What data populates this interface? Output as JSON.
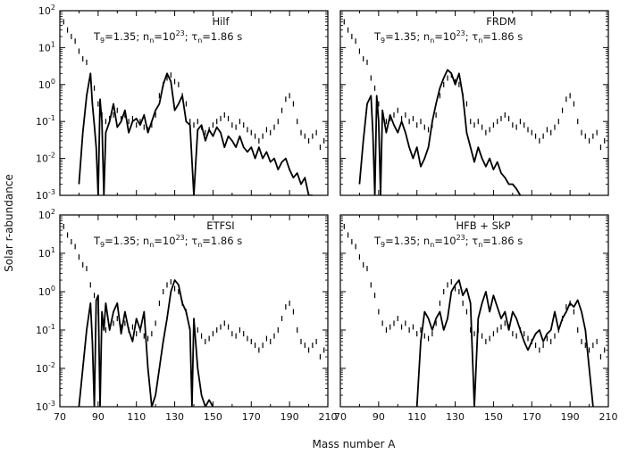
{
  "figure": {
    "ylabel": "Solar r-abundance",
    "xlabel": "Mass number A",
    "colors": {
      "model_line": "#000000",
      "solar_bars": "#000000",
      "frame": "#000000",
      "background": "#ffffff"
    }
  },
  "chart_data": [
    {
      "type": "line",
      "panel": "top-left",
      "label": "Hilf",
      "conditions": {
        "T": "T",
        "T_sub": "9",
        "T_val": "=1.35;",
        "n": "n",
        "n_sub": "n",
        "n_val": "=10",
        "n_exp": "23",
        "n_end": ";",
        "tau": "τ",
        "tau_sub": "n",
        "tau_val": "=1.86  s"
      },
      "xlim": [
        70,
        210
      ],
      "ylim_log10": [
        -3,
        2
      ],
      "yscale": "log",
      "xticks": [
        "70",
        "90",
        "110",
        "130",
        "150",
        "170",
        "190",
        "210"
      ],
      "yticks": [
        "10-3",
        "10-2",
        "10-1",
        "100",
        "101",
        "102"
      ],
      "series": [
        {
          "style": "thick-line",
          "x": [
            80,
            82,
            84,
            86,
            87,
            88,
            89,
            90,
            91,
            92,
            93,
            94,
            96,
            98,
            100,
            102,
            104,
            106,
            108,
            110,
            112,
            114,
            116,
            118,
            120,
            122,
            124,
            126,
            128,
            130,
            132,
            134,
            136,
            138,
            140,
            142,
            144,
            146,
            148,
            150,
            152,
            154,
            156,
            158,
            160,
            162,
            164,
            166,
            168,
            170,
            172,
            174,
            176,
            178,
            180,
            182,
            184,
            186,
            188,
            190,
            192,
            194,
            196,
            198,
            200,
            202
          ],
          "y": [
            0.002,
            0.05,
            0.5,
            2.0,
            0.3,
            0.08,
            0.02,
            0.0005,
            0.4,
            0.1,
            0.0005,
            0.05,
            0.1,
            0.3,
            0.07,
            0.1,
            0.2,
            0.05,
            0.1,
            0.12,
            0.08,
            0.15,
            0.05,
            0.1,
            0.2,
            0.3,
            1.0,
            2.0,
            1.2,
            0.2,
            0.3,
            0.5,
            0.1,
            0.08,
            0.0005,
            0.06,
            0.08,
            0.03,
            0.06,
            0.04,
            0.07,
            0.05,
            0.02,
            0.04,
            0.03,
            0.02,
            0.04,
            0.02,
            0.015,
            0.02,
            0.01,
            0.02,
            0.01,
            0.015,
            0.008,
            0.01,
            0.005,
            0.008,
            0.01,
            0.005,
            0.003,
            0.004,
            0.002,
            0.003,
            0.001,
            0.0005
          ]
        }
      ]
    },
    {
      "type": "line",
      "panel": "top-right",
      "label": "FRDM",
      "conditions": {
        "T": "T",
        "T_sub": "9",
        "T_val": "=1.35;",
        "n": "n",
        "n_sub": "n",
        "n_val": "=10",
        "n_exp": "23",
        "n_end": ";",
        "tau": "τ",
        "tau_sub": "n",
        "tau_val": "=1.86  s"
      },
      "xlim": [
        70,
        210
      ],
      "ylim_log10": [
        -3,
        2
      ],
      "yscale": "log",
      "xticks": [
        "70",
        "90",
        "110",
        "130",
        "150",
        "170",
        "190",
        "210"
      ],
      "yticks": [
        "10-3",
        "10-2",
        "10-1",
        "100",
        "101",
        "102"
      ],
      "series": [
        {
          "style": "thick-line",
          "x": [
            80,
            82,
            84,
            86,
            87,
            88,
            89,
            90,
            91,
            92,
            94,
            96,
            98,
            100,
            102,
            104,
            106,
            108,
            110,
            112,
            114,
            116,
            118,
            120,
            122,
            124,
            126,
            128,
            130,
            132,
            134,
            136,
            138,
            140,
            142,
            144,
            146,
            148,
            150,
            152,
            154,
            156,
            158,
            160,
            162,
            164
          ],
          "y": [
            0.002,
            0.03,
            0.3,
            0.5,
            0.05,
            0.0005,
            0.5,
            0.1,
            0.0005,
            0.2,
            0.05,
            0.15,
            0.08,
            0.05,
            0.1,
            0.05,
            0.02,
            0.01,
            0.02,
            0.006,
            0.01,
            0.02,
            0.1,
            0.3,
            0.8,
            1.5,
            2.5,
            2.0,
            1.0,
            2.0,
            0.5,
            0.05,
            0.02,
            0.008,
            0.02,
            0.01,
            0.006,
            0.01,
            0.005,
            0.008,
            0.004,
            0.003,
            0.002,
            0.002,
            0.0015,
            0.001
          ]
        }
      ]
    },
    {
      "type": "line",
      "panel": "bottom-left",
      "label": "ETFSI",
      "conditions": {
        "T": "T",
        "T_sub": "9",
        "T_val": "=1.35;",
        "n": "n",
        "n_sub": "n",
        "n_val": "=10",
        "n_exp": "23",
        "n_end": ";",
        "tau": "τ",
        "tau_sub": "n",
        "tau_val": "=1.86  s"
      },
      "xlim": [
        70,
        210
      ],
      "ylim_log10": [
        -3,
        2
      ],
      "yscale": "log",
      "xticks": [
        "70",
        "90",
        "110",
        "130",
        "150",
        "170",
        "190",
        "210"
      ],
      "yticks": [
        "10-3",
        "10-2",
        "10-1",
        "100",
        "101",
        "102"
      ],
      "series": [
        {
          "style": "thick-line",
          "x": [
            80,
            82,
            84,
            86,
            87,
            88,
            89,
            90,
            91,
            92,
            93,
            94,
            96,
            98,
            100,
            102,
            104,
            106,
            108,
            110,
            112,
            114,
            116,
            118,
            120,
            122,
            124,
            126,
            128,
            130,
            132,
            134,
            136,
            138,
            139,
            140,
            142,
            144,
            146,
            148,
            150
          ],
          "y": [
            0.001,
            0.01,
            0.1,
            0.5,
            0.05,
            0.0005,
            0.6,
            0.8,
            0.0005,
            0.3,
            0.1,
            0.5,
            0.1,
            0.3,
            0.5,
            0.08,
            0.3,
            0.1,
            0.05,
            0.2,
            0.1,
            0.3,
            0.01,
            0.001,
            0.002,
            0.01,
            0.05,
            0.2,
            1.0,
            2.0,
            1.5,
            0.5,
            0.3,
            0.1,
            0.0005,
            0.2,
            0.01,
            0.002,
            0.001,
            0.0015,
            0.001
          ]
        }
      ]
    },
    {
      "type": "line",
      "panel": "bottom-right",
      "label": "HFB  +  SkP",
      "conditions": {
        "T": "T",
        "T_sub": "9",
        "T_val": "=1.35;",
        "n": "n",
        "n_sub": "n",
        "n_val": "=10",
        "n_exp": "23",
        "n_end": ";",
        "tau": "τ",
        "tau_sub": "n",
        "tau_val": "=1.86  s"
      },
      "xlim": [
        70,
        210
      ],
      "ylim_log10": [
        -3,
        2
      ],
      "yscale": "log",
      "xticks": [
        "70",
        "90",
        "110",
        "130",
        "150",
        "170",
        "190",
        "210"
      ],
      "yticks": [
        "10-3",
        "10-2",
        "10-1",
        "100",
        "101",
        "102"
      ],
      "series": [
        {
          "style": "thick-line",
          "x": [
            110,
            112,
            114,
            116,
            118,
            120,
            122,
            124,
            126,
            128,
            130,
            132,
            134,
            136,
            138,
            140,
            142,
            144,
            146,
            148,
            150,
            152,
            154,
            156,
            158,
            160,
            162,
            164,
            166,
            168,
            170,
            172,
            174,
            176,
            178,
            180,
            182,
            184,
            186,
            188,
            190,
            192,
            194,
            196,
            198,
            200,
            202
          ],
          "y": [
            0.001,
            0.05,
            0.3,
            0.2,
            0.1,
            0.2,
            0.3,
            0.1,
            0.2,
            1.0,
            1.5,
            2.0,
            0.8,
            1.2,
            0.5,
            0.001,
            0.2,
            0.5,
            1.0,
            0.3,
            0.8,
            0.4,
            0.2,
            0.3,
            0.1,
            0.3,
            0.2,
            0.1,
            0.05,
            0.03,
            0.05,
            0.08,
            0.1,
            0.05,
            0.08,
            0.1,
            0.3,
            0.1,
            0.2,
            0.3,
            0.5,
            0.4,
            0.6,
            0.3,
            0.1,
            0.01,
            0.001
          ]
        }
      ]
    },
    {
      "type": "scatter",
      "role": "solar-r-abundance-bars",
      "x": [
        72,
        74,
        76,
        78,
        80,
        82,
        84,
        86,
        88,
        90,
        92,
        94,
        96,
        98,
        100,
        102,
        104,
        106,
        108,
        110,
        112,
        114,
        116,
        118,
        120,
        122,
        124,
        126,
        128,
        130,
        132,
        134,
        136,
        138,
        140,
        142,
        144,
        146,
        148,
        150,
        152,
        154,
        156,
        158,
        160,
        162,
        164,
        166,
        168,
        170,
        172,
        174,
        176,
        178,
        180,
        182,
        184,
        186,
        188,
        190,
        192,
        194,
        196,
        198,
        200,
        202,
        204,
        206,
        208
      ],
      "y": [
        50,
        30,
        20,
        15,
        8,
        5,
        4,
        1.5,
        0.8,
        0.3,
        0.15,
        0.1,
        0.12,
        0.15,
        0.2,
        0.12,
        0.15,
        0.1,
        0.12,
        0.08,
        0.1,
        0.07,
        0.06,
        0.08,
        0.15,
        0.5,
        1.0,
        1.5,
        1.8,
        1.2,
        1.0,
        0.5,
        0.3,
        0.1,
        0.08,
        0.1,
        0.07,
        0.05,
        0.06,
        0.08,
        0.1,
        0.12,
        0.15,
        0.12,
        0.08,
        0.07,
        0.1,
        0.08,
        0.06,
        0.05,
        0.04,
        0.03,
        0.04,
        0.06,
        0.05,
        0.07,
        0.1,
        0.2,
        0.4,
        0.5,
        0.3,
        0.1,
        0.05,
        0.04,
        0.03,
        0.04,
        0.05,
        0.02,
        0.03
      ]
    }
  ]
}
